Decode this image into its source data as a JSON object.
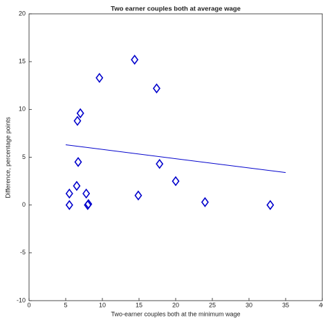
{
  "chart_data": {
    "type": "scatter",
    "title": "Two earner couples both at average wage",
    "x_label": "Two-earner couples both at the minimum wage",
    "y_label": "Difference, percentage points",
    "xlim": [
      0,
      40
    ],
    "xticks": [
      0,
      5,
      10,
      15,
      20,
      25,
      30,
      35,
      40
    ],
    "ylim": [
      -10,
      20
    ],
    "yticks": [
      -10,
      -5,
      0,
      5,
      10,
      15,
      20
    ],
    "grid": false,
    "series": [
      {
        "type": "scatter",
        "color": "#0000cc",
        "x": [
          5.5,
          5.5,
          6.5,
          6.7,
          6.6,
          7.0,
          7.8,
          8.0,
          8.1,
          9.6,
          14.4,
          14.9,
          17.4,
          17.8,
          20.0,
          24.0,
          32.9
        ],
        "values": [
          0,
          1.2,
          2.0,
          4.5,
          8.8,
          9.6,
          1.2,
          0,
          0.1,
          13.3,
          15.2,
          1.0,
          12.2,
          4.3,
          2.5,
          0.3,
          0
        ]
      },
      {
        "type": "line",
        "color": "#0000cc",
        "x": [
          5,
          35
        ],
        "values": [
          6.3,
          3.4
        ]
      }
    ]
  }
}
